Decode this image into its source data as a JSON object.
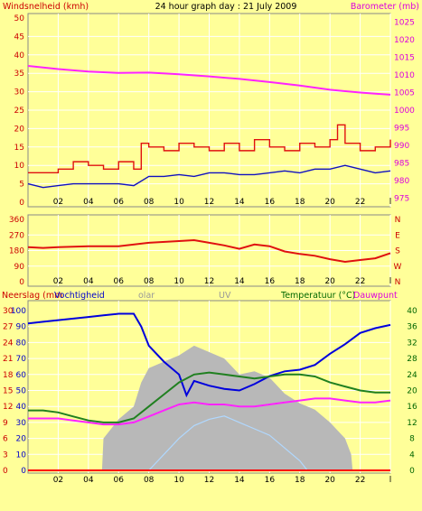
{
  "header": {
    "left_title": "Windsnelheid (kmh)",
    "center_title": "24 hour graph day : 21 July 2009",
    "right_title": "Barometer (mb)"
  },
  "colors": {
    "background": "#ffff99",
    "plot_background": "#ffff99",
    "grid": "#ffffff",
    "wind_speed": "#1010c0",
    "wind_gust": "#e01010",
    "barometer": "#ff22ff",
    "direction": "#e01010",
    "humidity": "#0000dd",
    "solar": "#b8b8b8",
    "uv": "#b0d8ff",
    "temperature": "#208020",
    "dewpoint": "#ff22ff",
    "rain": "#ff0000",
    "axis_red": "#cc0000",
    "axis_magenta": "#dd00dd",
    "axis_green": "#006600"
  },
  "panels": {
    "bottom": {
      "label_rain": "Neerslag (mm",
      "label_humidity": "Vochtigheid",
      "label_solar": "olar",
      "label_uv": "UV",
      "label_temp": "Temperatuur (°C)",
      "label_dew": "Dauwpunt"
    }
  },
  "chart_data": [
    {
      "type": "line",
      "panel": "wind-barometer",
      "x_ticks": [
        "02",
        "04",
        "06",
        "08",
        "10",
        "12",
        "14",
        "16",
        "18",
        "20",
        "22",
        "l"
      ],
      "x_range_hours": [
        0,
        24
      ],
      "y_left": {
        "label": "Windsnelheid (kmh)",
        "ticks": [
          0,
          5,
          10,
          15,
          20,
          25,
          30,
          35,
          40,
          45,
          50
        ],
        "range": [
          0,
          50
        ]
      },
      "y_right": {
        "label": "Barometer (mb)",
        "ticks": [
          975,
          980,
          985,
          990,
          995,
          1000,
          1005,
          1010,
          1015,
          1020,
          1025
        ],
        "range": [
          972.5,
          1027.5
        ]
      },
      "series": [
        {
          "name": "Barometer (mb)",
          "axis": "right",
          "x": [
            0,
            2,
            4,
            6,
            8,
            10,
            12,
            14,
            16,
            18,
            20,
            22,
            23,
            24
          ],
          "values": [
            1012.6,
            1011.7,
            1011.0,
            1010.6,
            1010.7,
            1010.2,
            1009.6,
            1008.9,
            1008.0,
            1007.0,
            1005.8,
            1005.0,
            1004.7,
            1004.4
          ]
        },
        {
          "name": "wind gust",
          "axis": "left",
          "x": [
            0,
            1,
            2,
            3,
            4,
            5,
            6,
            7,
            7.5,
            8,
            9,
            10,
            11,
            12,
            13,
            14,
            15,
            16,
            17,
            18,
            19,
            20,
            20.5,
            21,
            22,
            23,
            24
          ],
          "values": [
            8,
            8,
            9,
            11,
            10,
            9,
            11,
            9,
            16,
            15,
            14,
            16,
            15,
            14,
            16,
            14,
            17,
            15,
            14,
            16,
            15,
            17,
            21,
            16,
            14,
            15,
            17
          ]
        },
        {
          "name": "wind speed",
          "axis": "left",
          "x": [
            0,
            1,
            2,
            3,
            4,
            5,
            6,
            7,
            8,
            9,
            10,
            11,
            12,
            13,
            14,
            15,
            16,
            17,
            18,
            19,
            20,
            21,
            22,
            23,
            24
          ],
          "values": [
            5,
            4,
            4.5,
            5,
            5,
            5,
            5,
            4.5,
            7,
            7,
            7.5,
            7,
            8,
            8,
            7.5,
            7.5,
            8,
            8.5,
            8,
            9,
            9,
            10,
            9,
            8,
            8.5
          ]
        }
      ]
    },
    {
      "type": "line",
      "panel": "wind-direction",
      "x_ticks": [
        "02",
        "04",
        "06",
        "08",
        "10",
        "12",
        "14",
        "16",
        "18",
        "20",
        "22",
        "l"
      ],
      "y_left": {
        "ticks": [
          0,
          90,
          180,
          270,
          360
        ],
        "range": [
          0,
          360
        ]
      },
      "y_right": {
        "ticks": [
          "N",
          "W",
          "S",
          "E",
          "N"
        ]
      },
      "series": [
        {
          "name": "wind direction",
          "x": [
            0,
            1,
            2,
            4,
            6,
            8,
            10,
            11,
            12,
            13,
            14,
            15,
            16,
            17,
            18,
            19,
            20,
            21,
            22,
            23,
            24
          ],
          "values": [
            200,
            195,
            200,
            205,
            205,
            225,
            235,
            240,
            225,
            210,
            190,
            215,
            205,
            175,
            160,
            150,
            130,
            115,
            125,
            135,
            165
          ]
        }
      ]
    },
    {
      "type": "line",
      "panel": "humidity-temperature",
      "x_ticks": [
        "02",
        "04",
        "06",
        "08",
        "10",
        "12",
        "14",
        "16",
        "18",
        "20",
        "22",
        "l"
      ],
      "y_left_rain": {
        "label": "Neerslag (mm",
        "ticks": [
          0,
          3,
          6,
          9,
          12,
          15,
          18,
          21,
          24,
          27,
          30
        ],
        "range": [
          0,
          30
        ]
      },
      "y_left_humidity": {
        "label": "Vochtigheid",
        "ticks": [
          0,
          10,
          20,
          30,
          40,
          50,
          60,
          70,
          80,
          90,
          100
        ],
        "range": [
          0,
          100
        ]
      },
      "y_right": {
        "label": "Temperatuur (°C)",
        "ticks": [
          0,
          4,
          8,
          12,
          16,
          20,
          24,
          28,
          32,
          36,
          40
        ],
        "range": [
          0,
          40
        ]
      },
      "series": [
        {
          "name": "Vochtigheid",
          "axis": "humidity",
          "x": [
            0,
            1,
            2,
            3,
            4,
            5,
            6,
            7,
            7.5,
            8,
            9,
            10,
            10.5,
            11,
            12,
            13,
            14,
            15,
            16,
            17,
            18,
            19,
            20,
            21,
            22,
            23,
            24
          ],
          "values": [
            92,
            93,
            94,
            95,
            96,
            97,
            98,
            98,
            90,
            78,
            68,
            60,
            47,
            56,
            53,
            51,
            50,
            54,
            59,
            62,
            63,
            66,
            73,
            79,
            86,
            89,
            91
          ]
        },
        {
          "name": "Temperatuur (°C)",
          "axis": "temp",
          "x": [
            0,
            1,
            2,
            3,
            4,
            5,
            6,
            7,
            8,
            9,
            10,
            11,
            12,
            13,
            14,
            15,
            16,
            17,
            18,
            19,
            20,
            21,
            22,
            23,
            24
          ],
          "values": [
            15,
            15,
            14.5,
            13.5,
            12.5,
            12,
            12,
            13,
            16,
            19,
            22,
            24,
            24.5,
            24,
            23.5,
            23,
            23.5,
            24,
            24,
            23.5,
            22,
            21,
            20,
            19.5,
            19.5
          ]
        },
        {
          "name": "Dauwpunt",
          "axis": "temp",
          "x": [
            0,
            1,
            2,
            3,
            4,
            5,
            6,
            7,
            8,
            9,
            10,
            11,
            12,
            13,
            14,
            15,
            16,
            17,
            18,
            19,
            20,
            21,
            22,
            23,
            24
          ],
          "values": [
            13,
            13,
            13,
            12.5,
            12,
            11.5,
            11.5,
            12,
            13.5,
            15,
            16.5,
            17,
            16.5,
            16.5,
            16,
            16,
            16.5,
            17,
            17.5,
            18,
            18,
            17.5,
            17,
            17,
            17.5
          ]
        },
        {
          "name": "Solar",
          "axis": "humidity",
          "x": [
            0,
            4.9,
            5,
            6,
            7,
            7.5,
            8,
            9,
            10,
            11,
            12,
            13,
            14,
            15,
            16,
            17,
            18,
            19,
            20,
            21,
            21.4,
            21.5,
            24
          ],
          "values": [
            0,
            0,
            20,
            32,
            40,
            55,
            64,
            68,
            72,
            78,
            74,
            70,
            60,
            62,
            58,
            48,
            42,
            38,
            30,
            20,
            10,
            0,
            0
          ]
        },
        {
          "name": "UV",
          "axis": "humidity",
          "x": [
            0,
            8,
            9,
            10,
            11,
            12,
            13,
            14,
            15,
            16,
            17,
            18,
            18.5,
            24
          ],
          "values": [
            0,
            0,
            10,
            20,
            28,
            32,
            34,
            30,
            26,
            22,
            14,
            6,
            0,
            0
          ]
        },
        {
          "name": "Neerslag (mm",
          "axis": "rain",
          "x": [
            0,
            24
          ],
          "values": [
            0,
            0
          ]
        }
      ]
    }
  ]
}
